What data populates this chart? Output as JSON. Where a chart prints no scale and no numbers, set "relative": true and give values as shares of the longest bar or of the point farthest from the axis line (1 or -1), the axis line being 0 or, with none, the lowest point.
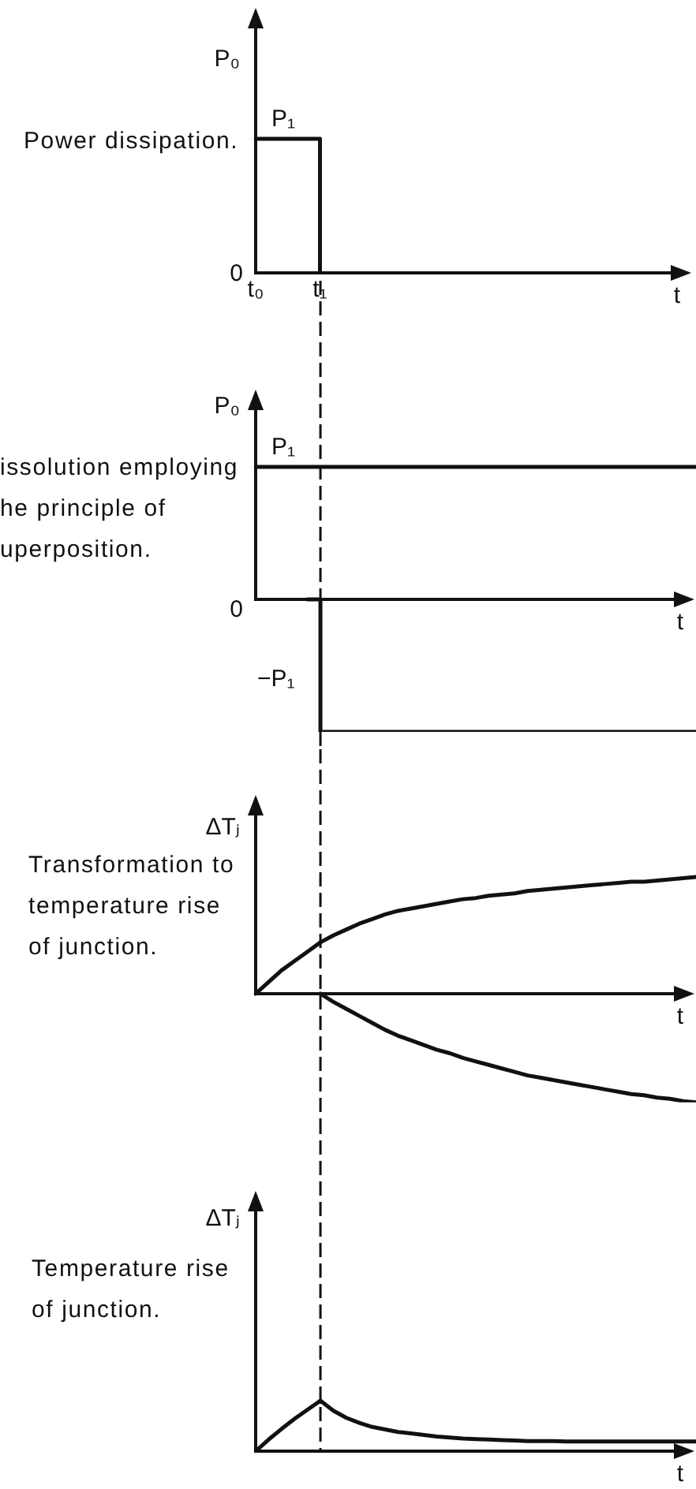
{
  "chart_data": [
    {
      "type": "step",
      "title": "Power dissipation.",
      "xlabel": "t",
      "ylabel": "P₀",
      "relative": true,
      "categories": [
        "t₀",
        null,
        null,
        null,
        null,
        "t₁",
        null,
        null,
        null,
        null,
        null,
        null,
        null,
        null,
        null,
        null,
        null,
        null,
        null,
        null,
        null,
        null,
        null,
        null,
        null,
        null,
        null,
        null,
        null,
        null,
        null,
        null,
        null,
        null,
        null
      ],
      "tick_labels": "x",
      "series": [
        {
          "color": "#111111",
          "values": [
            1,
            1,
            1,
            1,
            1,
            0,
            null,
            null,
            null,
            null,
            null,
            null,
            null,
            null,
            null,
            null,
            null,
            null,
            null,
            null,
            null,
            null,
            null,
            null,
            null,
            null,
            null,
            null,
            null,
            null,
            null,
            null,
            null,
            null,
            null
          ]
        }
      ],
      "annotations": [
        "0",
        {
          "text": "P₁",
          "y": 1
        }
      ]
    },
    {
      "type": "line",
      "title": "issolution employing\nhe principle of\nuperposition.",
      "xlabel": "t",
      "ylabel": "P₀",
      "relative": true,
      "categories": [
        "t₀",
        null,
        null,
        null,
        null,
        "t₁",
        null,
        null,
        null,
        null,
        null,
        null,
        null,
        null,
        null,
        null,
        null,
        null,
        null,
        null,
        null,
        null,
        null,
        null,
        null,
        null,
        null,
        null,
        null,
        null,
        null,
        null,
        null,
        null,
        null
      ],
      "tick_labels": false,
      "series": [
        {
          "color": "#111111",
          "values": [
            1,
            1,
            1,
            1,
            1,
            1,
            1,
            1,
            1,
            1,
            1,
            1,
            1,
            1,
            1,
            1,
            1,
            1,
            1,
            1,
            1,
            1,
            1,
            1,
            1,
            1,
            1,
            1,
            1,
            1,
            1,
            1,
            1,
            1,
            1
          ]
        },
        {
          "type": "step",
          "color": "#111111",
          "values": [
            null,
            null,
            null,
            null,
            0,
            -1,
            -1,
            -1,
            -1,
            -1,
            -1,
            -1,
            -1,
            -1,
            -1,
            -1,
            -1,
            -1,
            -1,
            -1,
            -1,
            -1,
            -1,
            -1,
            -1,
            -1,
            -1,
            -1,
            -1,
            -1,
            -1,
            -1,
            -1,
            -1,
            -1
          ]
        }
      ],
      "ref_lines": [
        {
          "axis": "x",
          "value": "t₁",
          "line_style": "dashed"
        }
      ],
      "annotations": [
        "0",
        {
          "text": "P₁",
          "y": 1
        },
        "−P₁"
      ]
    },
    {
      "type": "line",
      "title": "Transformation to\ntemperature rise\nof junction.",
      "xlabel": "t",
      "ylabel": "ΔTⱼ",
      "relative": true,
      "categories": [
        "t₀",
        null,
        null,
        null,
        null,
        "t₁",
        null,
        null,
        null,
        null,
        null,
        null,
        null,
        null,
        null,
        null,
        null,
        null,
        null,
        null,
        null,
        null,
        null,
        null,
        null,
        null,
        null,
        null,
        null,
        null,
        null,
        null,
        null,
        null,
        null
      ],
      "tick_labels": false,
      "series": [
        {
          "color": "#111111",
          "values": [
            0,
            0.1,
            0.2,
            0.28,
            0.36,
            0.44,
            0.5,
            0.55,
            0.6,
            0.64,
            0.68,
            0.71,
            0.73,
            0.75,
            0.77,
            0.79,
            0.81,
            0.82,
            0.84,
            0.85,
            0.86,
            0.88,
            0.89,
            0.9,
            0.91,
            0.92,
            0.93,
            0.94,
            0.95,
            0.96,
            0.96,
            0.97,
            0.98,
            0.99,
            1
          ]
        },
        {
          "color": "#111111",
          "values": [
            null,
            null,
            null,
            null,
            null,
            0,
            -0.07,
            -0.13,
            -0.19,
            -0.25,
            -0.31,
            -0.36,
            -0.4,
            -0.44,
            -0.48,
            -0.51,
            -0.55,
            -0.58,
            -0.61,
            -0.64,
            -0.67,
            -0.7,
            -0.72,
            -0.74,
            -0.76,
            -0.78,
            -0.8,
            -0.82,
            -0.84,
            -0.86,
            -0.87,
            -0.89,
            -0.9,
            -0.92,
            -0.93
          ]
        }
      ],
      "ref_lines": [
        {
          "axis": "x",
          "value": "t₁",
          "line_style": "dashed"
        }
      ]
    },
    {
      "type": "line",
      "title": "Temperature rise\nof junction.",
      "xlabel": "t",
      "ylabel": "ΔTⱼ",
      "relative": true,
      "categories": [
        "t₀",
        null,
        null,
        null,
        null,
        "t₁",
        null,
        null,
        null,
        null,
        null,
        null,
        null,
        null,
        null,
        null,
        null,
        null,
        null,
        null,
        null,
        null,
        null,
        null,
        null,
        null,
        null,
        null,
        null,
        null,
        null,
        null,
        null,
        null,
        null
      ],
      "tick_labels": false,
      "series": [
        {
          "color": "#111111",
          "values": [
            0,
            0.23,
            0.44,
            0.64,
            0.82,
            1,
            0.8,
            0.66,
            0.56,
            0.48,
            0.43,
            0.38,
            0.35,
            0.32,
            0.29,
            0.27,
            0.25,
            0.24,
            0.23,
            0.22,
            0.21,
            0.2,
            0.2,
            0.2,
            0.19,
            0.19,
            0.19,
            0.19,
            0.19,
            0.19,
            0.19,
            0.19,
            0.19,
            0.19,
            0.19
          ]
        }
      ],
      "ref_lines": [
        {
          "axis": "x",
          "value": "t₁",
          "line_style": "dashed"
        }
      ]
    }
  ]
}
